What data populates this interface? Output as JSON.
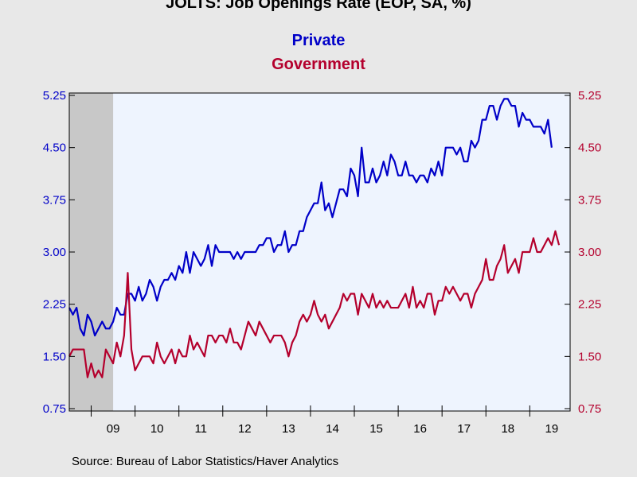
{
  "title": "JOLTS: Job Openings Rate  (EOP, SA, %)",
  "source": "Source:  Bureau of Labor Statistics/Haver Analytics",
  "chart_data": {
    "type": "line",
    "title": "JOLTS: Job Openings Rate  (EOP, SA, %)",
    "xlabel": "",
    "ylabel": "",
    "x_ticks": [
      "09",
      "10",
      "11",
      "12",
      "13",
      "14",
      "15",
      "16",
      "17",
      "18",
      "19"
    ],
    "y_ticks": [
      "0.75",
      "1.50",
      "2.25",
      "3.00",
      "3.75",
      "4.50",
      "5.25"
    ],
    "ylim": [
      0.75,
      5.25
    ],
    "xlim_years": [
      2008.5,
      2019.92
    ],
    "recession_shading": {
      "start": 2008.5,
      "end": 2009.5,
      "color": "#c8c8c8"
    },
    "grid": false,
    "legend_position": "top-center",
    "series": [
      {
        "name": "Private",
        "color": "#0000c8",
        "x_start": 2008.5,
        "x_step": 0.0833333,
        "values": [
          2.2,
          2.1,
          2.2,
          1.9,
          1.8,
          2.1,
          2.0,
          1.8,
          1.9,
          2.0,
          1.9,
          1.9,
          2.0,
          2.2,
          2.1,
          2.1,
          2.4,
          2.4,
          2.3,
          2.5,
          2.3,
          2.4,
          2.6,
          2.5,
          2.3,
          2.5,
          2.6,
          2.6,
          2.7,
          2.6,
          2.8,
          2.7,
          3.0,
          2.7,
          3.0,
          2.9,
          2.8,
          2.9,
          3.1,
          2.8,
          3.1,
          3.0,
          3.0,
          3.0,
          3.0,
          2.9,
          3.0,
          2.9,
          3.0,
          3.0,
          3.0,
          3.0,
          3.1,
          3.1,
          3.2,
          3.2,
          3.0,
          3.1,
          3.1,
          3.3,
          3.0,
          3.1,
          3.1,
          3.3,
          3.3,
          3.5,
          3.6,
          3.7,
          3.7,
          4.0,
          3.6,
          3.7,
          3.5,
          3.7,
          3.9,
          3.9,
          3.8,
          4.2,
          4.1,
          3.8,
          4.5,
          4.0,
          4.0,
          4.2,
          4.0,
          4.1,
          4.3,
          4.1,
          4.4,
          4.3,
          4.1,
          4.1,
          4.3,
          4.1,
          4.1,
          4.0,
          4.1,
          4.1,
          4.0,
          4.2,
          4.1,
          4.3,
          4.1,
          4.5,
          4.5,
          4.5,
          4.4,
          4.5,
          4.3,
          4.3,
          4.6,
          4.5,
          4.6,
          4.9,
          4.9,
          5.1,
          5.1,
          4.9,
          5.1,
          5.2,
          5.2,
          5.1,
          5.1,
          4.8,
          5.0,
          4.9,
          4.9,
          4.8,
          4.8,
          4.8,
          4.7,
          4.9,
          4.5
        ]
      },
      {
        "name": "Government",
        "color": "#b4002d",
        "x_start": 2008.5,
        "x_step": 0.0833333,
        "values": [
          1.5,
          1.6,
          1.6,
          1.6,
          1.6,
          1.2,
          1.4,
          1.2,
          1.3,
          1.2,
          1.6,
          1.5,
          1.4,
          1.7,
          1.5,
          1.8,
          2.7,
          1.6,
          1.3,
          1.4,
          1.5,
          1.5,
          1.5,
          1.4,
          1.7,
          1.5,
          1.4,
          1.5,
          1.6,
          1.4,
          1.6,
          1.5,
          1.5,
          1.8,
          1.6,
          1.7,
          1.6,
          1.5,
          1.8,
          1.8,
          1.7,
          1.8,
          1.8,
          1.7,
          1.9,
          1.7,
          1.7,
          1.6,
          1.8,
          2.0,
          1.9,
          1.8,
          2.0,
          1.9,
          1.8,
          1.7,
          1.8,
          1.8,
          1.8,
          1.7,
          1.5,
          1.7,
          1.8,
          2.0,
          2.1,
          2.0,
          2.1,
          2.3,
          2.1,
          2.0,
          2.1,
          1.9,
          2.0,
          2.1,
          2.2,
          2.4,
          2.3,
          2.4,
          2.4,
          2.1,
          2.4,
          2.3,
          2.2,
          2.4,
          2.2,
          2.3,
          2.2,
          2.3,
          2.2,
          2.2,
          2.2,
          2.3,
          2.4,
          2.2,
          2.5,
          2.2,
          2.3,
          2.2,
          2.4,
          2.4,
          2.1,
          2.3,
          2.3,
          2.5,
          2.4,
          2.5,
          2.4,
          2.3,
          2.4,
          2.4,
          2.2,
          2.4,
          2.5,
          2.6,
          2.9,
          2.6,
          2.6,
          2.8,
          2.9,
          3.1,
          2.7,
          2.8,
          2.9,
          2.7,
          3.0,
          3.0,
          3.0,
          3.2,
          3.0,
          3.0,
          3.1,
          3.2,
          3.1,
          3.3,
          3.1
        ]
      }
    ]
  }
}
